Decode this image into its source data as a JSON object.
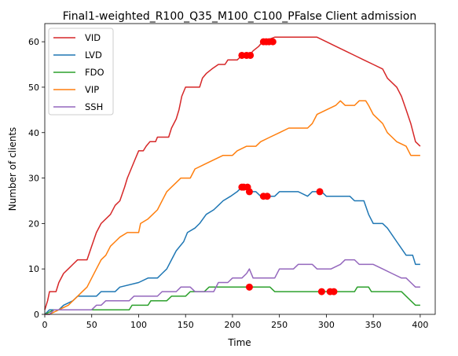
{
  "chart_data": {
    "type": "line",
    "title": "Final1-weighted_R100_Q35_M100_C100_PFalse Client admission",
    "xlabel": "Time",
    "ylabel": "Number of clients",
    "xlim": [
      0,
      416
    ],
    "ylim": [
      0,
      64
    ],
    "xticks": [
      0,
      50,
      100,
      150,
      200,
      250,
      300,
      350,
      400
    ],
    "yticks": [
      0,
      10,
      20,
      30,
      40,
      50,
      60
    ],
    "grid": false,
    "legend_position": "top-left",
    "series": [
      {
        "name": "VID",
        "color": "#d62728",
        "points": [
          [
            0,
            1
          ],
          [
            3,
            3
          ],
          [
            5,
            5
          ],
          [
            12,
            5
          ],
          [
            15,
            7
          ],
          [
            20,
            9
          ],
          [
            25,
            10
          ],
          [
            30,
            11
          ],
          [
            35,
            12
          ],
          [
            45,
            12
          ],
          [
            50,
            15
          ],
          [
            55,
            18
          ],
          [
            60,
            20
          ],
          [
            70,
            22
          ],
          [
            75,
            24
          ],
          [
            80,
            25
          ],
          [
            85,
            28
          ],
          [
            88,
            30
          ],
          [
            92,
            32
          ],
          [
            96,
            34
          ],
          [
            100,
            36
          ],
          [
            105,
            36
          ],
          [
            108,
            37
          ],
          [
            112,
            38
          ],
          [
            118,
            38
          ],
          [
            120,
            39
          ],
          [
            132,
            39
          ],
          [
            135,
            41
          ],
          [
            140,
            43
          ],
          [
            143,
            45
          ],
          [
            146,
            48
          ],
          [
            150,
            50
          ],
          [
            165,
            50
          ],
          [
            168,
            52
          ],
          [
            172,
            53
          ],
          [
            178,
            54
          ],
          [
            185,
            55
          ],
          [
            192,
            55
          ],
          [
            195,
            56
          ],
          [
            200,
            56
          ],
          [
            205,
            56
          ],
          [
            210,
            57
          ],
          [
            218,
            57
          ],
          [
            222,
            58
          ],
          [
            228,
            59
          ],
          [
            232,
            60
          ],
          [
            245,
            61
          ],
          [
            290,
            61
          ],
          [
            300,
            60
          ],
          [
            310,
            59
          ],
          [
            320,
            58
          ],
          [
            330,
            57
          ],
          [
            340,
            56
          ],
          [
            350,
            55
          ],
          [
            360,
            54
          ],
          [
            365,
            52
          ],
          [
            375,
            50
          ],
          [
            380,
            48
          ],
          [
            385,
            45
          ],
          [
            390,
            42
          ],
          [
            395,
            38
          ],
          [
            400,
            37
          ]
        ],
        "markers": [
          [
            210,
            57
          ],
          [
            215,
            57
          ],
          [
            219,
            57
          ],
          [
            233,
            60
          ],
          [
            236,
            60
          ],
          [
            239,
            60
          ],
          [
            243,
            60
          ]
        ]
      },
      {
        "name": "LVD",
        "color": "#1f77b4",
        "points": [
          [
            0,
            0
          ],
          [
            5,
            1
          ],
          [
            15,
            1
          ],
          [
            20,
            2
          ],
          [
            30,
            3
          ],
          [
            35,
            4
          ],
          [
            55,
            4
          ],
          [
            60,
            5
          ],
          [
            75,
            5
          ],
          [
            80,
            6
          ],
          [
            100,
            7
          ],
          [
            110,
            8
          ],
          [
            120,
            8
          ],
          [
            125,
            9
          ],
          [
            130,
            10
          ],
          [
            135,
            12
          ],
          [
            140,
            14
          ],
          [
            148,
            16
          ],
          [
            152,
            18
          ],
          [
            160,
            19
          ],
          [
            165,
            20
          ],
          [
            172,
            22
          ],
          [
            180,
            23
          ],
          [
            185,
            24
          ],
          [
            190,
            25
          ],
          [
            198,
            26
          ],
          [
            205,
            27
          ],
          [
            210,
            28
          ],
          [
            215,
            28
          ],
          [
            218,
            27
          ],
          [
            225,
            27
          ],
          [
            230,
            26
          ],
          [
            238,
            26
          ],
          [
            245,
            26
          ],
          [
            250,
            27
          ],
          [
            270,
            27
          ],
          [
            280,
            26
          ],
          [
            285,
            27
          ],
          [
            295,
            27
          ],
          [
            300,
            26
          ],
          [
            325,
            26
          ],
          [
            330,
            25
          ],
          [
            340,
            25
          ],
          [
            345,
            22
          ],
          [
            350,
            20
          ],
          [
            360,
            20
          ],
          [
            365,
            19
          ],
          [
            375,
            16
          ],
          [
            385,
            13
          ],
          [
            392,
            13
          ],
          [
            395,
            11
          ],
          [
            400,
            11
          ]
        ],
        "markers": [
          [
            210,
            28
          ],
          [
            212,
            28
          ],
          [
            216,
            28
          ],
          [
            218,
            27
          ],
          [
            233,
            26
          ],
          [
            237,
            26
          ],
          [
            293,
            27
          ]
        ]
      },
      {
        "name": "FDO",
        "color": "#2ca02c",
        "points": [
          [
            0,
            0
          ],
          [
            10,
            1
          ],
          [
            90,
            1
          ],
          [
            93,
            2
          ],
          [
            110,
            2
          ],
          [
            113,
            3
          ],
          [
            130,
            3
          ],
          [
            135,
            4
          ],
          [
            150,
            4
          ],
          [
            155,
            5
          ],
          [
            170,
            5
          ],
          [
            175,
            6
          ],
          [
            220,
            6
          ],
          [
            240,
            6
          ],
          [
            245,
            5
          ],
          [
            330,
            5
          ],
          [
            333,
            6
          ],
          [
            345,
            6
          ],
          [
            348,
            5
          ],
          [
            380,
            5
          ],
          [
            385,
            4
          ],
          [
            390,
            3
          ],
          [
            395,
            2
          ],
          [
            400,
            2
          ]
        ],
        "markers": [
          [
            218,
            6
          ],
          [
            295,
            5
          ],
          [
            304,
            5
          ],
          [
            308,
            5
          ]
        ]
      },
      {
        "name": "VIP",
        "color": "#ff7f0e",
        "points": [
          [
            0,
            0
          ],
          [
            5,
            0
          ],
          [
            15,
            1
          ],
          [
            25,
            2
          ],
          [
            30,
            3
          ],
          [
            35,
            4
          ],
          [
            40,
            5
          ],
          [
            45,
            6
          ],
          [
            50,
            8
          ],
          [
            55,
            10
          ],
          [
            60,
            12
          ],
          [
            65,
            13
          ],
          [
            70,
            15
          ],
          [
            75,
            16
          ],
          [
            80,
            17
          ],
          [
            88,
            18
          ],
          [
            100,
            18
          ],
          [
            102,
            20
          ],
          [
            110,
            21
          ],
          [
            115,
            22
          ],
          [
            120,
            23
          ],
          [
            125,
            25
          ],
          [
            130,
            27
          ],
          [
            135,
            28
          ],
          [
            140,
            29
          ],
          [
            145,
            30
          ],
          [
            155,
            30
          ],
          [
            160,
            32
          ],
          [
            170,
            33
          ],
          [
            180,
            34
          ],
          [
            190,
            35
          ],
          [
            200,
            35
          ],
          [
            205,
            36
          ],
          [
            215,
            37
          ],
          [
            225,
            37
          ],
          [
            230,
            38
          ],
          [
            240,
            39
          ],
          [
            250,
            40
          ],
          [
            260,
            41
          ],
          [
            280,
            41
          ],
          [
            285,
            42
          ],
          [
            290,
            44
          ],
          [
            300,
            45
          ],
          [
            310,
            46
          ],
          [
            315,
            47
          ],
          [
            320,
            46
          ],
          [
            330,
            46
          ],
          [
            335,
            47
          ],
          [
            342,
            47
          ],
          [
            345,
            46
          ],
          [
            350,
            44
          ],
          [
            360,
            42
          ],
          [
            365,
            40
          ],
          [
            370,
            39
          ],
          [
            375,
            38
          ],
          [
            385,
            37
          ],
          [
            390,
            35
          ],
          [
            400,
            35
          ]
        ],
        "markers": []
      },
      {
        "name": "SSH",
        "color": "#9467bd",
        "points": [
          [
            0,
            0
          ],
          [
            5,
            0
          ],
          [
            10,
            1
          ],
          [
            50,
            1
          ],
          [
            55,
            2
          ],
          [
            60,
            2
          ],
          [
            65,
            3
          ],
          [
            90,
            3
          ],
          [
            95,
            4
          ],
          [
            120,
            4
          ],
          [
            125,
            5
          ],
          [
            140,
            5
          ],
          [
            145,
            6
          ],
          [
            155,
            6
          ],
          [
            160,
            5
          ],
          [
            180,
            5
          ],
          [
            185,
            7
          ],
          [
            195,
            7
          ],
          [
            200,
            8
          ],
          [
            210,
            8
          ],
          [
            215,
            9
          ],
          [
            218,
            10
          ],
          [
            222,
            8
          ],
          [
            245,
            8
          ],
          [
            250,
            10
          ],
          [
            265,
            10
          ],
          [
            270,
            11
          ],
          [
            285,
            11
          ],
          [
            290,
            10
          ],
          [
            305,
            10
          ],
          [
            315,
            11
          ],
          [
            320,
            12
          ],
          [
            330,
            12
          ],
          [
            335,
            11
          ],
          [
            350,
            11
          ],
          [
            360,
            10
          ],
          [
            370,
            9
          ],
          [
            380,
            8
          ],
          [
            385,
            8
          ],
          [
            390,
            7
          ],
          [
            395,
            6
          ],
          [
            400,
            6
          ]
        ],
        "markers": []
      }
    ]
  }
}
